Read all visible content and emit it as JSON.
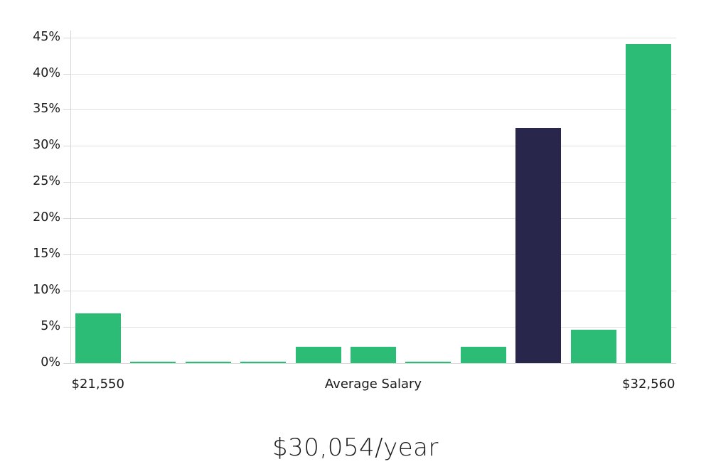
{
  "page": {
    "background": "#ffffff"
  },
  "chart_data": {
    "type": "bar",
    "title": "$30,054/year",
    "unit": "%",
    "categories": [
      "$21,550",
      "",
      "",
      "",
      "",
      "Average Salary",
      "",
      "",
      "",
      "",
      "$32,560"
    ],
    "values": [
      6.9,
      0.2,
      0.2,
      0.2,
      2.3,
      2.3,
      0.2,
      2.3,
      32.5,
      4.6,
      44.1
    ],
    "highlight_index": 8,
    "colors": {
      "bar_default": "#2cbc76",
      "bar_highlight": "#29264c",
      "grid": "#e2e2e2",
      "axis": "#d6d6d6",
      "label": "#1a1a1a",
      "title": "#1c1c1c"
    },
    "y_ticks": [
      "0%",
      "5%",
      "10%",
      "15%",
      "20%",
      "25%",
      "30%",
      "35%",
      "40%",
      "45%"
    ],
    "ylim": [
      0,
      45
    ],
    "ytick_step": 5,
    "grid": true,
    "legend": "none",
    "xlabel": "",
    "ylabel": ""
  }
}
